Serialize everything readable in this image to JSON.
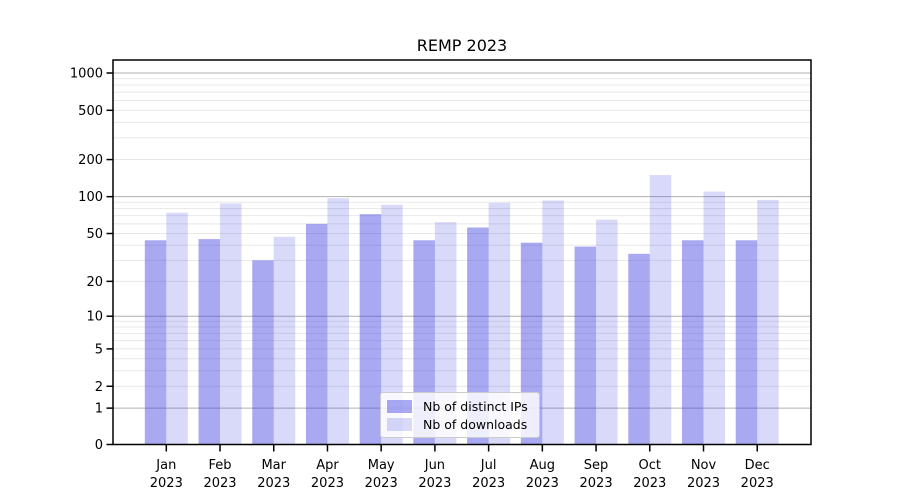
{
  "chart_data": {
    "type": "bar",
    "title": "REMP 2023",
    "categories": [
      {
        "month": "Jan",
        "year": "2023"
      },
      {
        "month": "Feb",
        "year": "2023"
      },
      {
        "month": "Mar",
        "year": "2023"
      },
      {
        "month": "Apr",
        "year": "2023"
      },
      {
        "month": "May",
        "year": "2023"
      },
      {
        "month": "Jun",
        "year": "2023"
      },
      {
        "month": "Jul",
        "year": "2023"
      },
      {
        "month": "Aug",
        "year": "2023"
      },
      {
        "month": "Sep",
        "year": "2023"
      },
      {
        "month": "Oct",
        "year": "2023"
      },
      {
        "month": "Nov",
        "year": "2023"
      },
      {
        "month": "Dec",
        "year": "2023"
      }
    ],
    "series": [
      {
        "name": "Nb of distinct IPs",
        "color": "#4040e0",
        "opacity": 0.45,
        "values": [
          44,
          45,
          30,
          60,
          72,
          44,
          56,
          42,
          39,
          34,
          44,
          44
        ]
      },
      {
        "name": "Nb of downloads",
        "color": "#4040e0",
        "opacity": 0.2,
        "values": [
          74,
          88,
          47,
          97,
          86,
          62,
          89,
          93,
          65,
          150,
          110,
          94
        ]
      }
    ],
    "y_axis": {
      "scale": "log1p",
      "tick_values": [
        0,
        1,
        2,
        5,
        10,
        20,
        50,
        100,
        200,
        500,
        1000
      ],
      "major_grid_values": [
        1,
        10,
        100,
        1000
      ],
      "minor_grid_values": [
        2,
        3,
        4,
        5,
        6,
        7,
        8,
        9,
        20,
        30,
        40,
        50,
        60,
        70,
        80,
        90,
        200,
        300,
        400,
        500,
        600,
        700,
        800,
        900
      ],
      "range": [
        0,
        1260
      ]
    },
    "xlabel": "",
    "ylabel": "",
    "legend_position": "bottom-center",
    "grid": "both",
    "colors": {
      "major_grid": "#b0b0b0",
      "minor_grid": "#e8e8e8",
      "frame": "#000000",
      "background": "#ffffff"
    }
  }
}
